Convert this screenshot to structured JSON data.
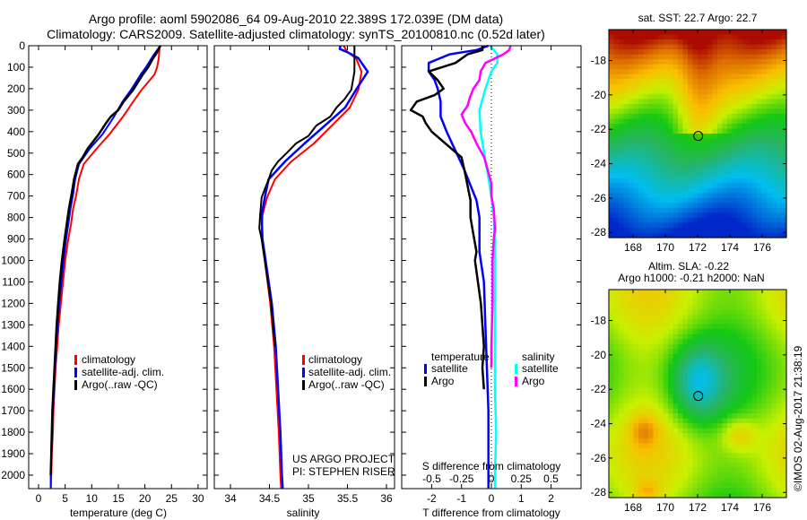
{
  "header": {
    "title_line1": "Argo profile: aoml 5902086_64 09-Aug-2010 22.389S 172.039E (DM data)",
    "title_line2": "Climatology: CARS2009. Satellite-adjusted climatology: synTS_20100810.nc (0.52d later)"
  },
  "colors": {
    "climatology": "#ff0000",
    "satellite": "#0000ff",
    "argo": "#000000",
    "sal_satellite": "#00ffff",
    "sal_argo": "#ff00ff"
  },
  "credits": {
    "project": "US ARGO PROJECT",
    "pi": "PI: STEPHEN RISER",
    "copyright": "©IMOS 02-Aug-2017 21:38:19"
  },
  "chart_data": [
    {
      "id": "temperature",
      "type": "line",
      "title": "",
      "xlabel": "temperature (deg C)",
      "ylabel": "",
      "xlim": [
        -2,
        31.5
      ],
      "ylim": [
        2060,
        0
      ],
      "xticks": [
        0,
        5,
        10,
        15,
        20,
        25,
        30
      ],
      "yticks": [
        0,
        100,
        200,
        300,
        400,
        500,
        600,
        700,
        800,
        900,
        1000,
        1100,
        1200,
        1300,
        1400,
        1500,
        1600,
        1700,
        1800,
        1900,
        2000
      ],
      "legend": {
        "position": "lower-middle",
        "entries": [
          "climatology",
          "satellite-adj. clim.",
          "Argo(..raw -QC)"
        ]
      },
      "series": [
        {
          "name": "climatology",
          "color_key": "climatology",
          "depth": [
            0,
            30,
            60,
            100,
            134,
            205,
            260,
            330,
            413,
            480,
            551,
            620,
            693,
            760,
            831,
            900,
            1000,
            1100,
            1200,
            1300,
            1400,
            1500,
            1600,
            1700,
            1800,
            1900,
            2000,
            2060
          ],
          "values": [
            22.8,
            22.7,
            22.6,
            22.3,
            21.8,
            19.4,
            17.8,
            15.9,
            13.3,
            10.9,
            8.5,
            7.6,
            7.1,
            6.5,
            6.1,
            5.6,
            5.0,
            4.6,
            4.2,
            3.8,
            3.5,
            3.2,
            3.0,
            2.8,
            2.7,
            2.5,
            2.4,
            2.3
          ]
        },
        {
          "name": "satellite-adj. clim.",
          "color_key": "satellite",
          "depth": [
            0,
            30,
            60,
            100,
            134,
            205,
            260,
            330,
            413,
            480,
            551,
            620,
            693,
            760,
            831,
            900,
            1000,
            1100,
            1200,
            1300,
            1400,
            1500,
            1600,
            1700,
            1800,
            1900,
            2000,
            2060
          ],
          "values": [
            22.9,
            22.0,
            21.2,
            20.2,
            19.2,
            17.4,
            15.8,
            14.2,
            12.0,
            9.6,
            7.6,
            6.9,
            6.5,
            6.0,
            5.6,
            5.2,
            4.7,
            4.3,
            3.9,
            3.6,
            3.3,
            3.1,
            2.9,
            2.7,
            2.5,
            2.4,
            2.3,
            2.3
          ]
        },
        {
          "name": "Argo(..raw -QC)",
          "color_key": "argo",
          "depth": [
            0,
            30,
            60,
            100,
            134,
            205,
            260,
            300,
            330,
            360,
            413,
            480,
            520,
            551,
            620,
            693,
            760,
            831,
            900,
            1000,
            1100,
            1200,
            1300,
            1400,
            1500,
            1600,
            1700,
            1800,
            1900,
            2000
          ],
          "values": [
            22.9,
            22.3,
            21.5,
            20.6,
            19.6,
            17.8,
            16.0,
            15.0,
            13.6,
            12.7,
            11.3,
            9.2,
            8.3,
            7.4,
            6.7,
            6.2,
            5.7,
            5.3,
            4.9,
            4.4,
            4.0,
            3.7,
            3.4,
            3.2,
            3.0,
            2.8,
            2.6,
            2.5,
            2.4,
            2.3
          ]
        }
      ]
    },
    {
      "id": "salinity",
      "type": "line",
      "title": "",
      "xlabel": "salinity",
      "ylabel": "",
      "xlim": [
        33.8,
        36.1
      ],
      "ylim": [
        2060,
        0
      ],
      "xticks": [
        34,
        34.5,
        35,
        35.5,
        36
      ],
      "legend": {
        "position": "lower-middle",
        "entries": [
          "climatology",
          "satellite-adj. clim.",
          "Argo(..raw -QC)"
        ]
      },
      "series": [
        {
          "name": "climatology",
          "color_key": "climatology",
          "depth": [
            0,
            30,
            58,
            121,
            205,
            288,
            372,
            455,
            539,
            622,
            706,
            789,
            900,
            1000,
            1200,
            1400,
            1600,
            1800,
            2000,
            2060
          ],
          "values": [
            35.45,
            35.5,
            35.61,
            35.68,
            35.64,
            35.53,
            35.3,
            35.07,
            34.78,
            34.57,
            34.47,
            34.41,
            34.4,
            34.44,
            34.51,
            34.56,
            34.59,
            34.62,
            34.64,
            34.65
          ]
        },
        {
          "name": "satellite-adj. clim.",
          "color_key": "satellite",
          "depth": [
            0,
            15,
            30,
            58,
            121,
            205,
            288,
            372,
            455,
            539,
            622,
            706,
            789,
            900,
            1000,
            1200,
            1400,
            1600,
            1800,
            2000,
            2060
          ],
          "values": [
            35.41,
            35.4,
            35.5,
            35.64,
            35.76,
            35.61,
            35.47,
            35.21,
            34.95,
            34.7,
            34.49,
            34.44,
            34.4,
            34.41,
            34.45,
            34.53,
            34.58,
            34.61,
            34.64,
            34.66,
            34.67
          ]
        },
        {
          "name": "Argo(..raw -QC)",
          "color_key": "argo",
          "depth": [
            0,
            58,
            121,
            205,
            250,
            288,
            330,
            372,
            420,
            455,
            500,
            539,
            580,
            622,
            706,
            789,
            850,
            900,
            1000,
            1200,
            1400
          ],
          "values": [
            35.59,
            35.59,
            35.59,
            35.55,
            35.46,
            35.36,
            35.28,
            35.1,
            35.0,
            34.84,
            34.72,
            34.61,
            34.53,
            34.49,
            34.4,
            34.38,
            34.37,
            34.4,
            34.44,
            34.52,
            34.57
          ]
        }
      ]
    },
    {
      "id": "difference",
      "type": "line",
      "title": "",
      "xlabel": "T difference from climatology",
      "xlabel_top": "S difference from climatology",
      "ylabel": "",
      "xlim": [
        -3,
        3
      ],
      "ylim": [
        2060,
        0
      ],
      "xticks": [
        -2,
        -1,
        0,
        1,
        2
      ],
      "xticks_s": [
        -0.5,
        -0.25,
        0,
        0.25,
        0.5
      ],
      "legend": {
        "position": "lower-middle",
        "entries": [
          "temperature",
          "satellite",
          "Argo",
          "salinity",
          "satellite",
          "Argo"
        ]
      },
      "series": [
        {
          "name": "temperature satellite",
          "color_key": "satellite",
          "axis": "T",
          "depth": [
            0,
            20,
            40,
            80,
            120,
            160,
            200,
            260,
            330,
            400,
            460,
            520,
            580,
            650,
            720,
            800,
            880,
            960,
            1100,
            1300,
            1500,
            1700,
            1900,
            2060
          ],
          "values": [
            -0.1,
            -0.5,
            -1.4,
            -2.1,
            -2.1,
            -1.9,
            -1.8,
            -1.7,
            -1.7,
            -1.5,
            -1.3,
            -1.1,
            -0.9,
            -0.7,
            -0.5,
            -0.4,
            -0.4,
            -0.4,
            -0.25,
            -0.2,
            -0.15,
            -0.1,
            -0.1,
            -0.1
          ]
        },
        {
          "name": "temperature Argo",
          "color_key": "argo",
          "axis": "T",
          "depth": [
            0,
            20,
            40,
            80,
            120,
            160,
            200,
            230,
            260,
            300,
            330,
            360,
            400,
            460,
            520,
            580,
            650,
            720,
            800,
            880,
            960,
            1000,
            1100,
            1200,
            1300,
            1400,
            1500,
            1600
          ],
          "values": [
            -0.3,
            -0.3,
            -0.8,
            -1.2,
            -2.1,
            -1.8,
            -1.6,
            -1.9,
            -2.5,
            -2.7,
            -2.3,
            -2.2,
            -2.0,
            -1.5,
            -1.0,
            -0.9,
            -0.8,
            -0.7,
            -0.7,
            -0.6,
            -0.5,
            -0.55,
            -0.45,
            -0.35,
            -0.3,
            -0.25,
            -0.3,
            -0.25
          ]
        },
        {
          "name": "salinity satellite",
          "color_key": "sal_satellite",
          "axis": "S",
          "depth": [
            0,
            20,
            40,
            80,
            120,
            200,
            300,
            400,
            500,
            600,
            700,
            800,
            900,
            1000,
            1200,
            1400,
            1600,
            1800,
            2000,
            2060
          ],
          "values": [
            -0.01,
            0.02,
            0.05,
            0.05,
            0.0,
            -0.05,
            -0.1,
            -0.09,
            -0.06,
            -0.03,
            0.0,
            0.02,
            0.03,
            0.03,
            0.03,
            0.03,
            0.03,
            0.04,
            0.03,
            0.03
          ]
        },
        {
          "name": "salinity Argo",
          "color_key": "sal_argo",
          "axis": "S",
          "depth": [
            0,
            20,
            40,
            80,
            120,
            160,
            200,
            240,
            280,
            320,
            360,
            400,
            460,
            520,
            580,
            640,
            700,
            760,
            850,
            900,
            1000,
            1200,
            1400,
            1500
          ],
          "values": [
            0.16,
            0.15,
            0.1,
            -0.05,
            -0.09,
            -0.1,
            -0.15,
            -0.18,
            -0.2,
            -0.25,
            -0.22,
            -0.17,
            -0.12,
            -0.06,
            -0.03,
            0.0,
            0.0,
            0.02,
            0.03,
            0.02,
            0.01,
            0.01,
            0.0,
            0.0
          ]
        }
      ]
    },
    {
      "id": "map-sst",
      "type": "heatmap",
      "title": "sat. SST: 22.7 Argo: 22.7",
      "xlim": [
        166.5,
        177.5
      ],
      "ylim": [
        -28.3,
        -16.2
      ],
      "xticks": [
        168,
        170,
        172,
        174,
        176
      ],
      "yticks": [
        -18,
        -20,
        -22,
        -24,
        -26,
        -28
      ],
      "marker": {
        "lon": 172.039,
        "lat": -22.389
      }
    },
    {
      "id": "map-sla",
      "type": "heatmap",
      "title": "Altim. SLA: -0.22",
      "subtitle": "Argo h1000: -0.21 h2000: NaN",
      "xlim": [
        166.5,
        177.5
      ],
      "ylim": [
        -28.3,
        -16.2
      ],
      "xticks": [
        168,
        170,
        172,
        174,
        176
      ],
      "yticks": [
        -18,
        -20,
        -22,
        -24,
        -26,
        -28
      ],
      "marker": {
        "lon": 172.039,
        "lat": -22.389
      }
    }
  ]
}
